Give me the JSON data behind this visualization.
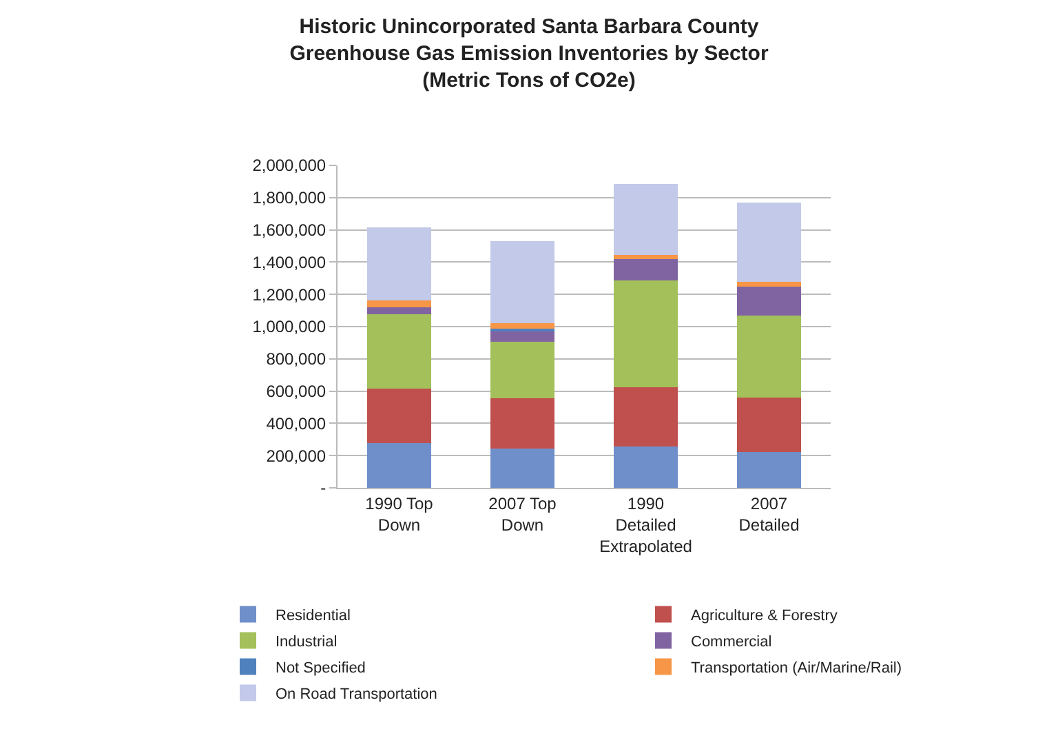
{
  "chart_data": {
    "type": "bar",
    "stacked": true,
    "title": "Historic Unincorporated Santa Barbara County\nGreenhouse Gas Emission Inventories by Sector\n(Metric Tons of CO2e)",
    "categories": [
      "1990 Top\nDown",
      "2007 Top\nDown",
      "1990\nDetailed\nExtrapolated",
      "2007\nDetailed"
    ],
    "series": [
      {
        "name": "Residential",
        "color": "#6f8fcb",
        "values": [
          277000,
          245000,
          258000,
          224000
        ]
      },
      {
        "name": "Agriculture & Forestry",
        "color": "#c0504d",
        "values": [
          337000,
          311000,
          364000,
          337000
        ]
      },
      {
        "name": "Industrial",
        "color": "#a3c05a",
        "values": [
          461000,
          348000,
          664000,
          509000
        ]
      },
      {
        "name": "Commercial",
        "color": "#8064a2",
        "values": [
          45000,
          66000,
          132000,
          176000
        ]
      },
      {
        "name": "Not Specified",
        "color": "#4f81bd",
        "values": [
          0,
          18000,
          0,
          0
        ]
      },
      {
        "name": "Transportation (Air/Marine/Rail)",
        "color": "#f79646",
        "values": [
          42000,
          32000,
          26000,
          32000
        ]
      },
      {
        "name": "On Road Transportation",
        "color": "#c3c9e9",
        "values": [
          453000,
          511000,
          440000,
          490000
        ]
      }
    ],
    "ylim": [
      0,
      2000000
    ],
    "yticks": [
      {
        "value": 0,
        "label": "-"
      },
      {
        "value": 200000,
        "label": "200,000"
      },
      {
        "value": 400000,
        "label": "400,000"
      },
      {
        "value": 600000,
        "label": "600,000"
      },
      {
        "value": 800000,
        "label": "800,000"
      },
      {
        "value": 1000000,
        "label": "1,000,000"
      },
      {
        "value": 1200000,
        "label": "1,200,000"
      },
      {
        "value": 1400000,
        "label": "1,400,000"
      },
      {
        "value": 1600000,
        "label": "1,600,000"
      },
      {
        "value": 1800000,
        "label": "1,800,000"
      },
      {
        "value": 2000000,
        "label": "2,000,000"
      }
    ],
    "grid": "y",
    "legend": "bottom"
  }
}
